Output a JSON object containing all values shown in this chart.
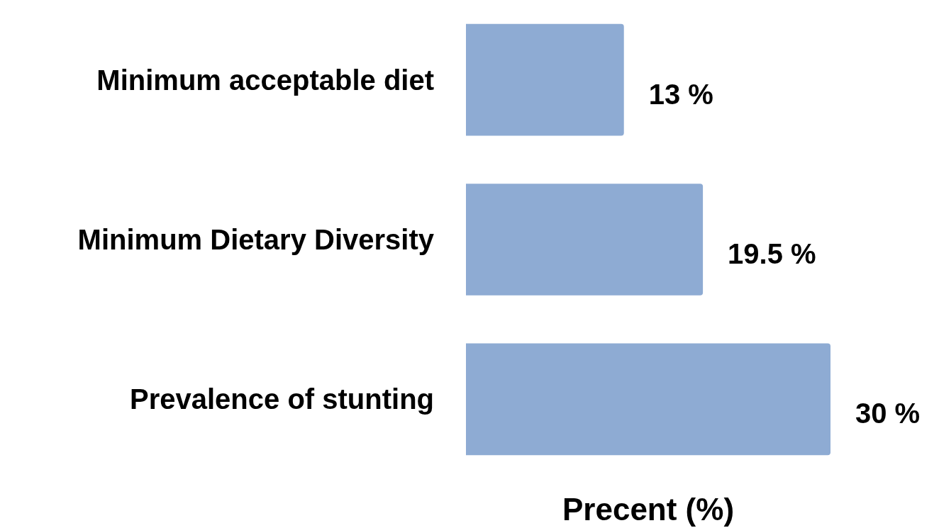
{
  "chart_data": {
    "type": "bar",
    "orientation": "horizontal",
    "xlabel": "Precent (%)",
    "categories": [
      "Minimum acceptable diet",
      "Minimum Dietary Diversity",
      "Prevalence of stunting"
    ],
    "values": [
      13,
      19.5,
      30
    ],
    "value_labels": [
      "13 %",
      "19.5 %",
      "30 %"
    ],
    "color": "#8eabd3"
  }
}
